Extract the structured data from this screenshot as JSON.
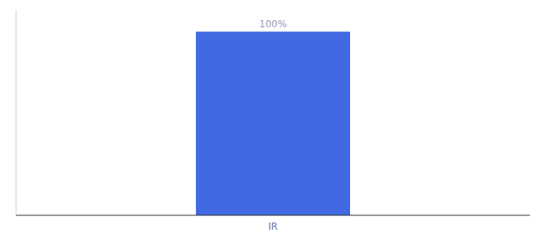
{
  "chart_data": {
    "type": "bar",
    "categories": [
      "IR"
    ],
    "values": [
      100
    ],
    "value_labels": [
      "100%"
    ],
    "data_labels": true,
    "color": "#4169E1",
    "ylim": [
      0,
      112
    ],
    "tick_labels": "x"
  }
}
